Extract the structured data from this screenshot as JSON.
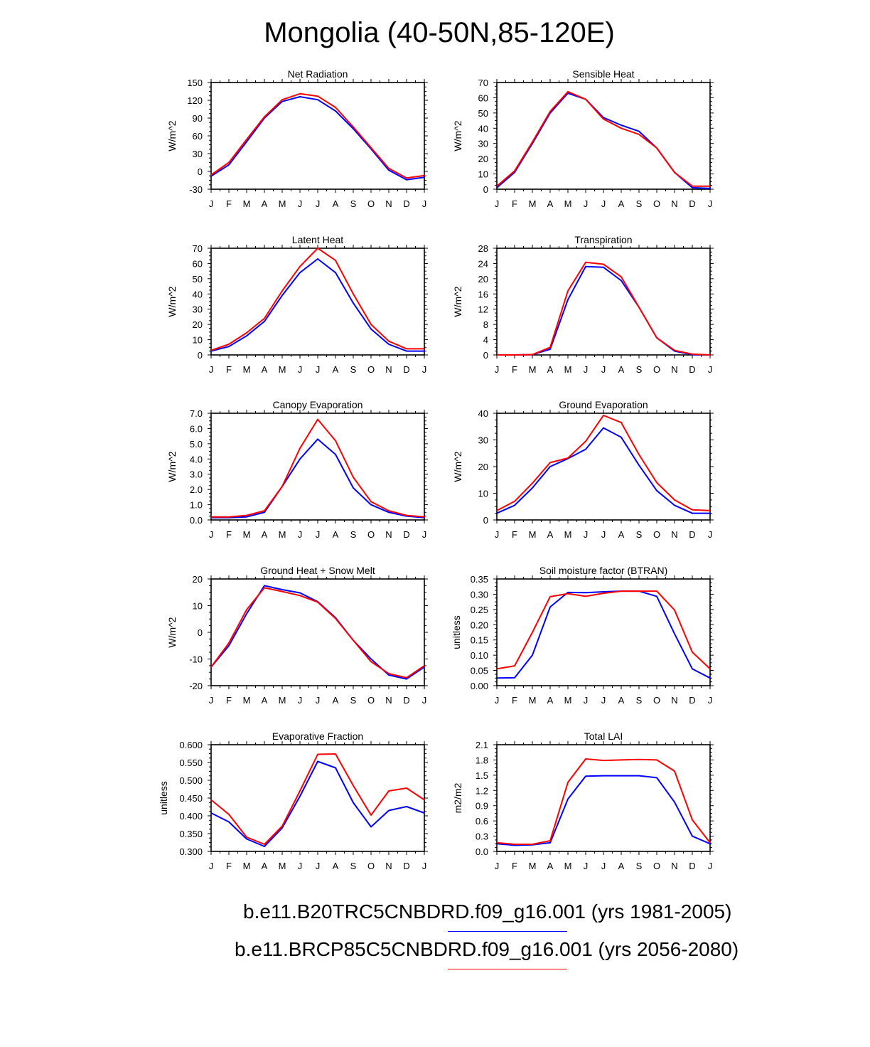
{
  "title": "Mongolia (40-50N,85-120E)",
  "months": [
    "J",
    "F",
    "M",
    "A",
    "M",
    "J",
    "J",
    "A",
    "S",
    "O",
    "N",
    "D",
    "J"
  ],
  "colors": {
    "case1": "#0000ff",
    "case2": "#ff0000"
  },
  "legend": [
    {
      "label": "b.e11.B20TRC5CNBDRD.f09_g16.001 (yrs 1981-2005)",
      "color": "#0000ff"
    },
    {
      "label": "b.e11.BRCP85C5CNBDRD.f09_g16.001 (yrs 2056-2080)",
      "color": "#ff0000"
    }
  ],
  "chart_data": [
    {
      "type": "line",
      "title": "Net Radiation",
      "ylabel": "W/m^2",
      "ylim": [
        -30,
        150
      ],
      "yticks": [
        "150",
        "120",
        "90",
        "60",
        "30",
        "0",
        "-30"
      ],
      "ytick_values": [
        150,
        120,
        90,
        60,
        30,
        0,
        -30
      ],
      "series": [
        {
          "values": [
            -8,
            11,
            50,
            90,
            118,
            126,
            121,
            102,
            72,
            38,
            2,
            -14,
            -10
          ]
        },
        {
          "values": [
            -6,
            15,
            54,
            92,
            121,
            131,
            127,
            108,
            75,
            40,
            5,
            -11,
            -7
          ]
        }
      ]
    },
    {
      "type": "line",
      "title": "Sensible Heat",
      "ylabel": "W/m^2",
      "ylim": [
        0,
        70
      ],
      "yticks": [
        "70",
        "60",
        "50",
        "40",
        "30",
        "20",
        "10",
        "0"
      ],
      "ytick_values": [
        70,
        60,
        50,
        40,
        30,
        20,
        10,
        0
      ],
      "series": [
        {
          "values": [
            1,
            11,
            30,
            50,
            63,
            59,
            47,
            42,
            38,
            27,
            11,
            1,
            0.5
          ]
        },
        {
          "values": [
            2,
            12,
            31,
            51,
            64,
            59,
            46,
            40,
            36,
            27,
            11,
            2,
            2
          ]
        }
      ]
    },
    {
      "type": "line",
      "title": "Latent Heat",
      "ylabel": "W/m^2",
      "ylim": [
        0,
        70
      ],
      "yticks": [
        "70",
        "60",
        "50",
        "40",
        "30",
        "20",
        "10",
        "0"
      ],
      "ytick_values": [
        70,
        60,
        50,
        40,
        30,
        20,
        10,
        0
      ],
      "series": [
        {
          "values": [
            2.5,
            5.5,
            12.5,
            22,
            39,
            54,
            63,
            54,
            34,
            17,
            7,
            2.5,
            2.5
          ]
        },
        {
          "values": [
            3,
            7,
            14.5,
            24,
            42,
            58,
            70,
            62,
            40,
            20,
            9,
            4,
            4
          ]
        }
      ]
    },
    {
      "type": "line",
      "title": "Transpiration",
      "ylabel": "W/m^2",
      "ylim": [
        0,
        28
      ],
      "yticks": [
        "28",
        "24",
        "20",
        "16",
        "12",
        "8",
        "4",
        "0"
      ],
      "ytick_values": [
        28,
        24,
        20,
        16,
        12,
        8,
        4,
        0
      ],
      "series": [
        {
          "values": [
            0,
            0,
            0.1,
            1.5,
            14.5,
            23.2,
            23,
            19.5,
            12.5,
            4.5,
            1,
            0.1,
            0
          ]
        },
        {
          "values": [
            0,
            0,
            0.1,
            2,
            16.8,
            24.3,
            23.8,
            20.5,
            12.5,
            4.5,
            1.2,
            0.2,
            0
          ]
        }
      ]
    },
    {
      "type": "line",
      "title": "Canopy Evaporation",
      "ylabel": "W/m^2",
      "ylim": [
        0,
        7
      ],
      "yticks": [
        "7.0",
        "6.0",
        "5.0",
        "4.0",
        "3.0",
        "2.0",
        "1.0",
        "0.0"
      ],
      "ytick_values": [
        7,
        6,
        5,
        4,
        3,
        2,
        1,
        0
      ],
      "series": [
        {
          "values": [
            0.15,
            0.15,
            0.2,
            0.5,
            2.2,
            4,
            5.3,
            4.3,
            2.1,
            1,
            0.5,
            0.25,
            0.15
          ]
        },
        {
          "values": [
            0.2,
            0.2,
            0.3,
            0.6,
            2.2,
            4.7,
            6.6,
            5.2,
            2.8,
            1.2,
            0.6,
            0.3,
            0.2
          ]
        }
      ]
    },
    {
      "type": "line",
      "title": "Ground Evaporation",
      "ylabel": "W/m^2",
      "ylim": [
        0,
        40
      ],
      "yticks": [
        "40",
        "30",
        "20",
        "10",
        "0"
      ],
      "ytick_values": [
        40,
        30,
        20,
        10,
        0
      ],
      "series": [
        {
          "values": [
            2.5,
            5.5,
            12,
            20,
            23,
            26.5,
            34.5,
            31,
            20.5,
            11,
            5.5,
            2.5,
            2.5
          ]
        },
        {
          "values": [
            3.5,
            7,
            13.8,
            21.5,
            23.2,
            29.5,
            39.2,
            36.5,
            24.5,
            14,
            7.5,
            3.8,
            3.5
          ]
        }
      ]
    },
    {
      "type": "line",
      "title": "Ground Heat + Snow Melt",
      "ylabel": "W/m^2",
      "ylim": [
        -20,
        20
      ],
      "yticks": [
        "20",
        "10",
        "0",
        "-10",
        "-20"
      ],
      "ytick_values": [
        20,
        10,
        0,
        -10,
        -20
      ],
      "series": [
        {
          "values": [
            -13,
            -5,
            7,
            17.5,
            16,
            14.8,
            11.5,
            5.5,
            -3,
            -10,
            -16,
            -17.5,
            -13
          ]
        },
        {
          "values": [
            -13,
            -4,
            8.5,
            16.7,
            15.3,
            13.8,
            11.3,
            5.2,
            -3,
            -11,
            -15.5,
            -17,
            -12.5
          ]
        }
      ]
    },
    {
      "type": "line",
      "title": "Soil moisture factor (BTRAN)",
      "ylabel": "unitless",
      "ylim": [
        0,
        0.35
      ],
      "yticks": [
        "0.35",
        "0.30",
        "0.25",
        "0.20",
        "0.15",
        "0.10",
        "0.05",
        "0.00"
      ],
      "ytick_values": [
        0.35,
        0.3,
        0.25,
        0.2,
        0.15,
        0.1,
        0.05,
        0
      ],
      "series": [
        {
          "values": [
            0.025,
            0.026,
            0.1,
            0.258,
            0.306,
            0.305,
            0.308,
            0.31,
            0.31,
            0.293,
            0.17,
            0.055,
            0.025
          ]
        },
        {
          "values": [
            0.055,
            0.065,
            0.175,
            0.292,
            0.302,
            0.293,
            0.303,
            0.31,
            0.31,
            0.31,
            0.248,
            0.11,
            0.055
          ]
        }
      ]
    },
    {
      "type": "line",
      "title": "Evaporative Fraction",
      "ylabel": "unitless",
      "ylim": [
        0.3,
        0.6
      ],
      "yticks": [
        "0.600",
        "0.550",
        "0.500",
        "0.450",
        "0.400",
        "0.350",
        "0.300"
      ],
      "ytick_values": [
        0.6,
        0.55,
        0.5,
        0.45,
        0.4,
        0.35,
        0.3
      ],
      "series": [
        {
          "values": [
            0.408,
            0.383,
            0.335,
            0.314,
            0.366,
            0.455,
            0.553,
            0.535,
            0.437,
            0.369,
            0.415,
            0.426,
            0.408
          ]
        },
        {
          "values": [
            0.445,
            0.404,
            0.34,
            0.32,
            0.371,
            0.47,
            0.573,
            0.574,
            0.485,
            0.402,
            0.47,
            0.478,
            0.445
          ]
        }
      ]
    },
    {
      "type": "line",
      "title": "Total LAI",
      "ylabel": "m2/m2",
      "ylim": [
        0,
        2.1
      ],
      "yticks": [
        "2.1",
        "1.8",
        "1.5",
        "1.2",
        "0.9",
        "0.6",
        "0.3",
        "0.0"
      ],
      "ytick_values": [
        2.1,
        1.8,
        1.5,
        1.2,
        0.9,
        0.6,
        0.3,
        0
      ],
      "series": [
        {
          "values": [
            0.15,
            0.12,
            0.13,
            0.17,
            1.03,
            1.48,
            1.49,
            1.49,
            1.49,
            1.45,
            0.97,
            0.3,
            0.15
          ]
        },
        {
          "values": [
            0.17,
            0.14,
            0.14,
            0.21,
            1.36,
            1.82,
            1.79,
            1.8,
            1.81,
            1.8,
            1.58,
            0.62,
            0.17
          ]
        }
      ]
    }
  ]
}
